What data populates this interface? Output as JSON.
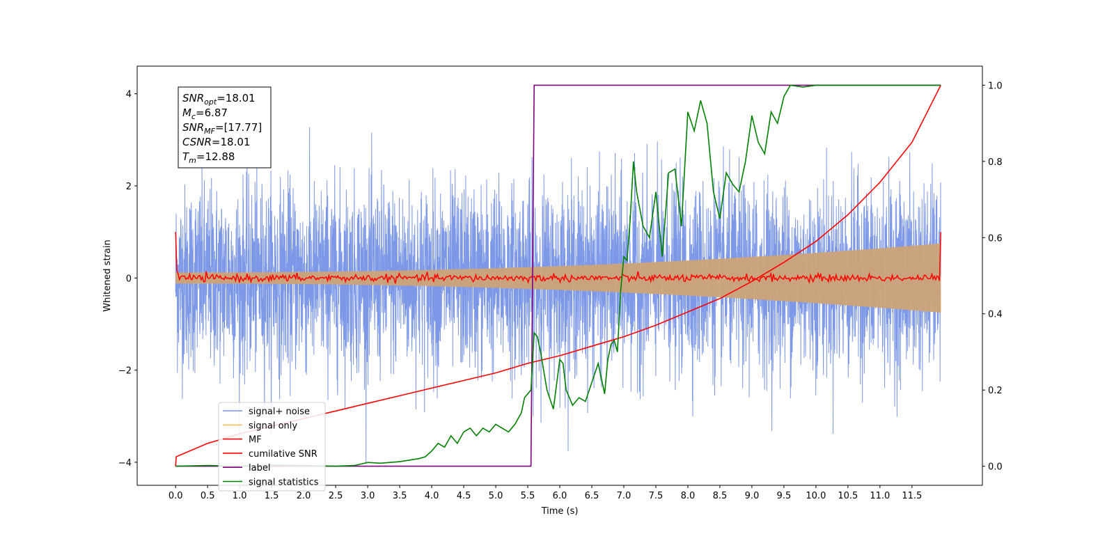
{
  "chart_data": {
    "type": "line",
    "xlabel": "Time (s)",
    "ylabel_left": "Whitened strain",
    "ylabel_right": "",
    "xlim": [
      -0.6,
      12.6
    ],
    "ylim_left": [
      -4.5,
      4.6
    ],
    "ylim_right": [
      -0.05,
      1.05
    ],
    "x_ticks": [
      0.0,
      0.5,
      1.0,
      1.5,
      2.0,
      2.5,
      3.0,
      3.5,
      4.0,
      4.5,
      5.0,
      5.5,
      6.0,
      6.5,
      7.0,
      7.5,
      8.0,
      8.5,
      9.0,
      9.5,
      10.0,
      10.5,
      11.0,
      11.5
    ],
    "x_tick_labels": [
      "0.0",
      "0.5",
      "1.0",
      "1.5",
      "2.0",
      "2.5",
      "3.0",
      "3.5",
      "4.0",
      "4.5",
      "5.0",
      "5.5",
      "6.0",
      "6.5",
      "7.0",
      "7.5",
      "8.0",
      "8.5",
      "9.0",
      "9.5",
      "10.0",
      "10.5",
      "11.0",
      "11.5"
    ],
    "y_left_ticks": [
      4,
      2,
      0,
      -2,
      -4
    ],
    "y_left_tick_labels": [
      "4",
      "2",
      "0",
      "−2",
      "−4"
    ],
    "y_right_ticks": [
      1.0,
      0.8,
      0.6,
      0.4,
      0.2,
      0.0
    ],
    "y_right_tick_labels": [
      "1.0",
      "0.8",
      "0.6",
      "0.4",
      "0.2",
      "0.0"
    ],
    "grid": false,
    "legend_position": "lower-left",
    "annotation": [
      {
        "base": "SNR",
        "sub": "opt",
        "value": "=18.01"
      },
      {
        "base": "M",
        "sub": "c",
        "value": "=6.87"
      },
      {
        "base": "SNR",
        "sub": "MF",
        "value": "=[17.77]"
      },
      {
        "base": "CSNR",
        "sub": "",
        "value": "=18.01"
      },
      {
        "base": "T",
        "sub": "m",
        "value": "=12.88"
      }
    ],
    "series": [
      {
        "name": "signal+ noise",
        "axis": "left",
        "color": "#7692e6",
        "kind": "noise",
        "x_range": [
          0,
          11.95
        ],
        "noise_std": 1.0,
        "peak_abs": 4.15
      },
      {
        "name": "signal only",
        "axis": "left",
        "color": "#ffbb66",
        "kind": "chirp_envelope",
        "x_range": [
          0,
          11.95
        ],
        "amplitude_start": 0.12,
        "amplitude_end": 0.75
      },
      {
        "name": "MF",
        "axis": "left",
        "color": "#ff0000",
        "kind": "noise",
        "x_range": [
          0,
          11.95
        ],
        "noise_std": 0.04,
        "edge_value": 1.0
      },
      {
        "name": "cumilative SNR",
        "axis": "right",
        "color": "#ff0000",
        "kind": "curve",
        "x": [
          0.0,
          0.01,
          0.5,
          1.0,
          1.5,
          2.0,
          2.5,
          3.0,
          3.5,
          4.0,
          4.5,
          5.0,
          5.5,
          6.0,
          6.5,
          7.0,
          7.5,
          8.0,
          8.5,
          9.0,
          9.5,
          10.0,
          10.5,
          11.0,
          11.5,
          11.95
        ],
        "y": [
          0.0,
          0.025,
          0.06,
          0.085,
          0.105,
          0.125,
          0.145,
          0.165,
          0.185,
          0.205,
          0.225,
          0.245,
          0.27,
          0.29,
          0.315,
          0.34,
          0.37,
          0.405,
          0.44,
          0.485,
          0.535,
          0.59,
          0.66,
          0.745,
          0.85,
          1.0
        ]
      },
      {
        "name": "label",
        "axis": "right",
        "color": "#800080",
        "kind": "step",
        "x": [
          0.0,
          5.55,
          5.6,
          11.95
        ],
        "y": [
          0.0,
          0.0,
          1.0,
          1.0
        ]
      },
      {
        "name": "signal statistics",
        "axis": "right",
        "color": "#008000",
        "kind": "curve",
        "x": [
          0.0,
          0.5,
          1.0,
          1.5,
          2.0,
          2.5,
          2.8,
          3.0,
          3.2,
          3.5,
          3.8,
          3.9,
          4.0,
          4.1,
          4.2,
          4.3,
          4.4,
          4.5,
          4.6,
          4.7,
          4.8,
          4.9,
          5.0,
          5.1,
          5.2,
          5.3,
          5.4,
          5.45,
          5.5,
          5.55,
          5.6,
          5.65,
          5.7,
          5.8,
          5.9,
          6.0,
          6.05,
          6.1,
          6.2,
          6.3,
          6.4,
          6.5,
          6.6,
          6.7,
          6.75,
          6.8,
          6.85,
          6.9,
          6.95,
          7.0,
          7.05,
          7.1,
          7.15,
          7.2,
          7.3,
          7.4,
          7.5,
          7.6,
          7.7,
          7.8,
          7.9,
          8.0,
          8.1,
          8.2,
          8.3,
          8.4,
          8.5,
          8.6,
          8.7,
          8.8,
          8.9,
          9.0,
          9.1,
          9.2,
          9.3,
          9.4,
          9.5,
          9.6,
          9.8,
          10.0,
          10.5,
          11.0,
          11.5,
          11.95
        ],
        "y": [
          0.0,
          0.002,
          0.0,
          0.003,
          0.002,
          0.0,
          0.002,
          0.01,
          0.008,
          0.012,
          0.02,
          0.025,
          0.04,
          0.06,
          0.05,
          0.08,
          0.06,
          0.09,
          0.1,
          0.08,
          0.1,
          0.09,
          0.11,
          0.1,
          0.09,
          0.11,
          0.14,
          0.18,
          0.19,
          0.2,
          0.35,
          0.34,
          0.3,
          0.2,
          0.15,
          0.28,
          0.27,
          0.2,
          0.16,
          0.18,
          0.17,
          0.22,
          0.27,
          0.19,
          0.28,
          0.32,
          0.33,
          0.3,
          0.46,
          0.55,
          0.54,
          0.65,
          0.8,
          0.72,
          0.63,
          0.6,
          0.72,
          0.55,
          0.77,
          0.78,
          0.63,
          0.93,
          0.88,
          0.96,
          0.9,
          0.72,
          0.65,
          0.77,
          0.74,
          0.72,
          0.8,
          0.92,
          0.85,
          0.82,
          0.93,
          0.9,
          0.97,
          1.0,
          0.995,
          1.0,
          1.0,
          1.0,
          1.0,
          1.0
        ]
      }
    ]
  }
}
